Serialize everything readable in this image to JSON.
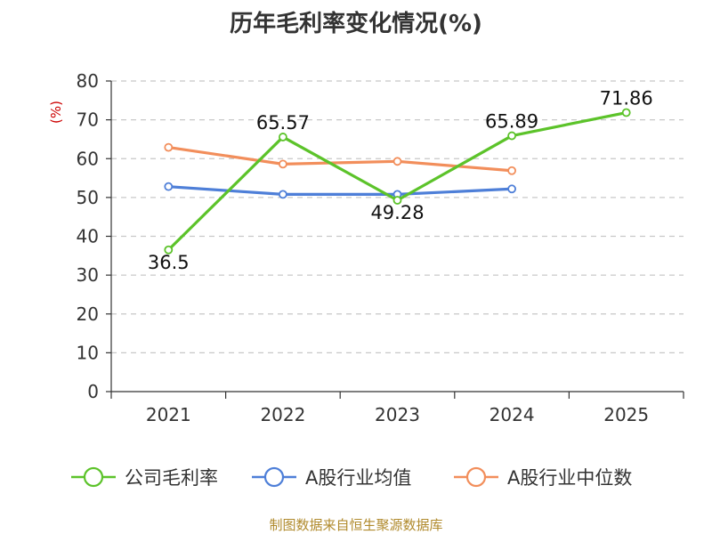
{
  "chart_data": {
    "type": "line",
    "title": "历年毛利率变化情况(%)",
    "ylabel": "(%)",
    "xlabel": "",
    "categories": [
      "2021",
      "2022",
      "2023",
      "2024",
      "2025"
    ],
    "ylim": [
      0,
      80
    ],
    "yticks": [
      0,
      10,
      20,
      30,
      40,
      50,
      60,
      70,
      80
    ],
    "grid": true,
    "legend_position": "bottom",
    "series": [
      {
        "name": "公司毛利率",
        "color": "#5cc32a",
        "values": [
          36.5,
          65.57,
          49.28,
          65.89,
          71.86
        ],
        "labels": [
          "36.5",
          "65.57",
          "49.28",
          "65.89",
          "71.86"
        ]
      },
      {
        "name": "A股行业均值",
        "color": "#4e7fd8",
        "values": [
          52.8,
          50.8,
          50.8,
          52.2,
          null
        ]
      },
      {
        "name": "A股行业中位数",
        "color": "#f28e5b",
        "values": [
          62.9,
          58.6,
          59.3,
          56.9,
          null
        ]
      }
    ]
  },
  "footer": {
    "source": "制图数据来自恒生聚源数据库"
  }
}
